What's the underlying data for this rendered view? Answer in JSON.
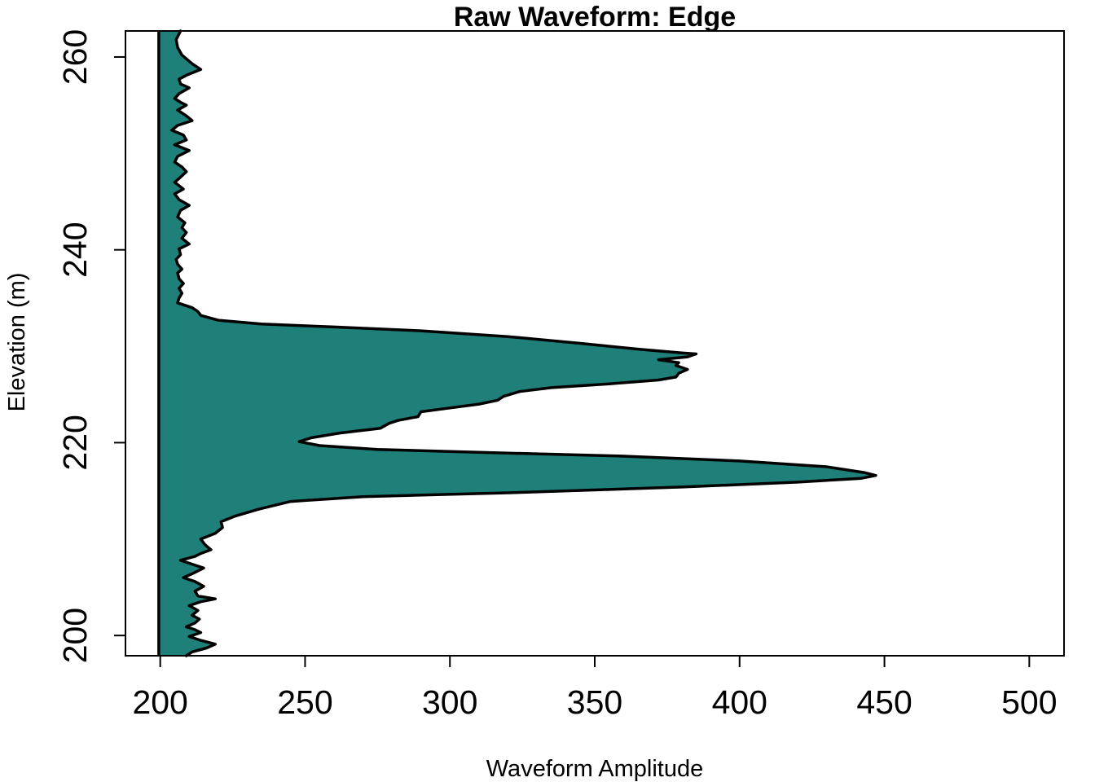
{
  "chart_data": {
    "type": "area",
    "title": "Raw Waveform: Edge",
    "xlabel": "Waveform Amplitude",
    "ylabel": "Elevation (m)",
    "xlim": [
      188,
      512
    ],
    "ylim": [
      197.9,
      262.7
    ],
    "x_ticks": [
      200,
      250,
      300,
      350,
      400,
      450,
      500
    ],
    "y_ticks": [
      200,
      220,
      240,
      260
    ],
    "grid": false,
    "legend": "none",
    "baseline_x": 199.5,
    "colors": {
      "fill": "#1f7f79",
      "outline": "#000000",
      "baseline": "#000000"
    },
    "series": [
      {
        "points": [
          [
            207.0,
            262.7
          ],
          [
            205.5,
            261.8
          ],
          [
            206.0,
            261.0
          ],
          [
            207.5,
            260.2
          ],
          [
            211.0,
            259.3
          ],
          [
            214.0,
            258.7
          ],
          [
            209.0,
            258.1
          ],
          [
            206.5,
            257.7
          ],
          [
            207.0,
            257.2
          ],
          [
            210.0,
            256.8
          ],
          [
            206.5,
            256.2
          ],
          [
            205.0,
            255.7
          ],
          [
            207.0,
            255.3
          ],
          [
            209.0,
            255.0
          ],
          [
            206.0,
            254.5
          ],
          [
            209.0,
            253.9
          ],
          [
            211.0,
            253.4
          ],
          [
            206.0,
            252.9
          ],
          [
            204.0,
            252.4
          ],
          [
            208.0,
            251.9
          ],
          [
            209.0,
            251.4
          ],
          [
            205.0,
            250.9
          ],
          [
            210.0,
            250.3
          ],
          [
            206.0,
            249.7
          ],
          [
            205.0,
            249.1
          ],
          [
            207.5,
            248.6
          ],
          [
            209.0,
            248.1
          ],
          [
            206.5,
            247.4
          ],
          [
            205.0,
            247.0
          ],
          [
            208.0,
            246.3
          ],
          [
            205.0,
            245.8
          ],
          [
            206.5,
            245.2
          ],
          [
            210.0,
            244.6
          ],
          [
            207.0,
            244.1
          ],
          [
            206.0,
            243.4
          ],
          [
            208.5,
            242.8
          ],
          [
            207.5,
            242.3
          ],
          [
            209.0,
            241.8
          ],
          [
            207.5,
            241.2
          ],
          [
            210.0,
            240.6
          ],
          [
            206.5,
            240.1
          ],
          [
            207.0,
            239.5
          ],
          [
            205.5,
            239.0
          ],
          [
            206.0,
            238.5
          ],
          [
            207.5,
            238.0
          ],
          [
            206.0,
            237.6
          ],
          [
            206.5,
            237.0
          ],
          [
            208.0,
            236.5
          ],
          [
            206.5,
            236.0
          ],
          [
            207.5,
            235.5
          ],
          [
            206.5,
            235.0
          ],
          [
            206.0,
            234.5
          ],
          [
            211.0,
            234.0
          ],
          [
            213.0,
            233.6
          ],
          [
            214.0,
            233.2
          ],
          [
            220.0,
            232.7
          ],
          [
            235.0,
            232.3
          ],
          [
            260.0,
            232.0
          ],
          [
            290.0,
            231.6
          ],
          [
            320.0,
            231.0
          ],
          [
            345.0,
            230.3
          ],
          [
            365.0,
            229.7
          ],
          [
            380.0,
            229.3
          ],
          [
            385.0,
            229.2
          ],
          [
            382.0,
            228.9
          ],
          [
            372.0,
            228.6
          ],
          [
            379.0,
            228.3
          ],
          [
            378.0,
            228.0
          ],
          [
            382.0,
            227.6
          ],
          [
            379.0,
            227.2
          ],
          [
            378.0,
            226.8
          ],
          [
            372.0,
            226.5
          ],
          [
            355.0,
            226.1
          ],
          [
            335.0,
            225.7
          ],
          [
            324.0,
            225.3
          ],
          [
            318.5,
            224.8
          ],
          [
            316.5,
            224.4
          ],
          [
            310.0,
            224.0
          ],
          [
            300.0,
            223.6
          ],
          [
            290.0,
            223.2
          ],
          [
            289.0,
            222.7
          ],
          [
            282.0,
            222.3
          ],
          [
            279.0,
            222.0
          ],
          [
            276.0,
            221.5
          ],
          [
            262.0,
            221.0
          ],
          [
            252.0,
            220.5
          ],
          [
            248.0,
            220.1
          ],
          [
            255.0,
            219.7
          ],
          [
            275.0,
            219.3
          ],
          [
            310.0,
            219.0
          ],
          [
            360.0,
            218.6
          ],
          [
            400.0,
            218.1
          ],
          [
            430.0,
            217.5
          ],
          [
            443.0,
            216.9
          ],
          [
            447.0,
            216.6
          ],
          [
            442.0,
            216.3
          ],
          [
            420.0,
            215.9
          ],
          [
            380.0,
            215.4
          ],
          [
            320.0,
            214.8
          ],
          [
            270.0,
            214.4
          ],
          [
            245.0,
            213.9
          ],
          [
            234.0,
            213.1
          ],
          [
            226.0,
            212.4
          ],
          [
            221.0,
            211.8
          ],
          [
            221.5,
            211.2
          ],
          [
            219.0,
            210.6
          ],
          [
            214.0,
            210.0
          ],
          [
            215.5,
            209.4
          ],
          [
            217.5,
            208.9
          ],
          [
            214.0,
            208.5
          ],
          [
            212.0,
            208.2
          ],
          [
            207.0,
            207.8
          ],
          [
            211.0,
            207.4
          ],
          [
            215.0,
            207.0
          ],
          [
            211.0,
            206.4
          ],
          [
            208.0,
            206.0
          ],
          [
            212.0,
            205.6
          ],
          [
            215.0,
            205.1
          ],
          [
            212.0,
            204.6
          ],
          [
            213.0,
            204.1
          ],
          [
            219.0,
            203.8
          ],
          [
            214.0,
            203.5
          ],
          [
            210.0,
            203.1
          ],
          [
            213.0,
            202.6
          ],
          [
            211.0,
            202.1
          ],
          [
            213.5,
            201.7
          ],
          [
            212.0,
            201.3
          ],
          [
            209.0,
            200.9
          ],
          [
            212.0,
            200.6
          ],
          [
            214.0,
            200.3
          ],
          [
            210.0,
            199.9
          ],
          [
            214.0,
            199.5
          ],
          [
            219.0,
            199.1
          ],
          [
            216.0,
            198.7
          ],
          [
            211.0,
            198.3
          ],
          [
            209.0,
            197.9
          ]
        ]
      }
    ]
  }
}
